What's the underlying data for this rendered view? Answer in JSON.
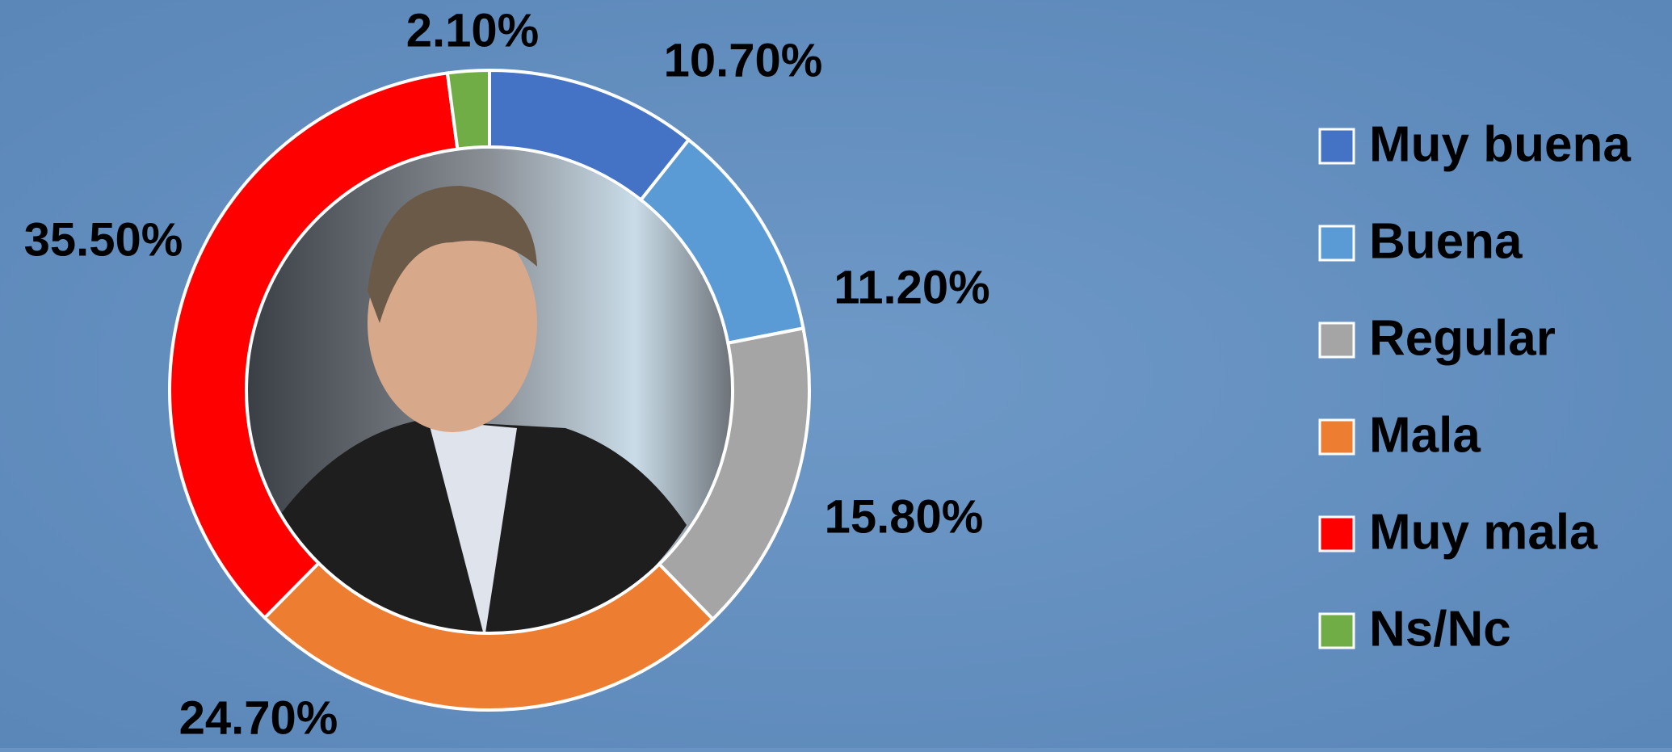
{
  "chart_data": {
    "type": "donut",
    "categories": [
      "Muy buena",
      "Buena",
      "Regular",
      "Mala",
      "Muy mala",
      "Ns/Nc"
    ],
    "values": [
      10.7,
      11.2,
      15.8,
      24.7,
      35.5,
      2.1
    ],
    "value_labels": [
      "10.70%",
      "11.20%",
      "15.80%",
      "24.70%",
      "35.50%",
      "2.10%"
    ],
    "colors": [
      "#4472c4",
      "#5b9bd5",
      "#a5a5a5",
      "#ed7d31",
      "#ff0000",
      "#70ad47"
    ],
    "legend": "right"
  }
}
